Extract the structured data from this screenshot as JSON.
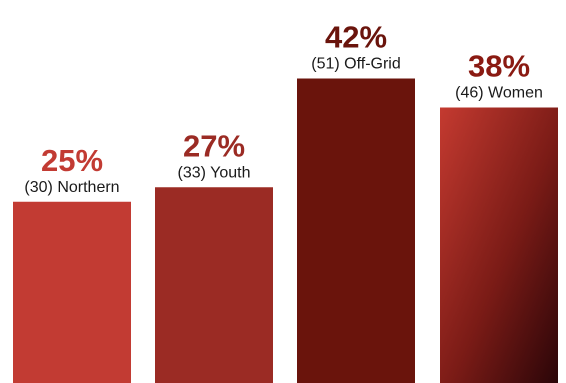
{
  "chart_data": {
    "type": "bar",
    "title": "",
    "xlabel": "",
    "ylabel": "",
    "ylim": [
      0,
      42
    ],
    "bars": [
      {
        "percent_label": "25%",
        "count_label": "(30) Northern",
        "value": 25,
        "fill": "#c23b33",
        "label_color": "#c23b33"
      },
      {
        "percent_label": "27%",
        "count_label": "(33) Youth",
        "value": 27,
        "fill": "#9b2b24",
        "label_color": "#9b2b24"
      },
      {
        "percent_label": "42%",
        "count_label": "(51) Off-Grid",
        "value": 42,
        "fill": "#6a140c",
        "label_color": "#6a140c"
      },
      {
        "percent_label": "38%",
        "count_label": "(46) Women",
        "value": 38,
        "fill": "gradient",
        "gradient_colors": [
          "#c43a30",
          "#7a1b16",
          "#2a0508"
        ],
        "label_color": "#8a1a12"
      }
    ]
  }
}
